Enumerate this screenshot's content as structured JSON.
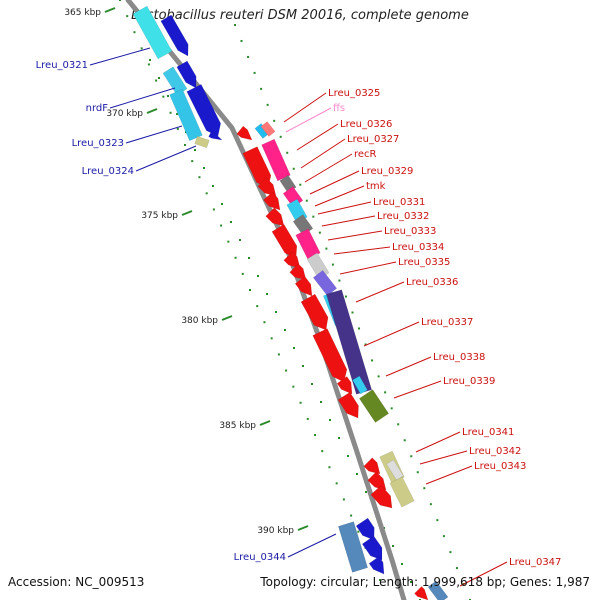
{
  "title": "Lactobacillus reuteri DSM 20016, complete genome",
  "accession": "Accession: NC_009513",
  "topology": "Topology: circular; Length: 1,999,618 bp; Genes: 1,987",
  "ticks": [
    "365 kbp",
    "370 kbp",
    "375 kbp",
    "380 kbp",
    "385 kbp",
    "390 kbp"
  ],
  "colors": {
    "minus_label": "#1a1aa6",
    "plus_label": "#cc1111",
    "rna_label": "#ff88cc",
    "backbone": "#888888",
    "tick": "#2a8a2a"
  },
  "labels": [
    {
      "text": "Lreu_0321",
      "strand": "minus"
    },
    {
      "text": "nrdF",
      "strand": "minus"
    },
    {
      "text": "Lreu_0323",
      "strand": "minus"
    },
    {
      "text": "Lreu_0324",
      "strand": "minus"
    },
    {
      "text": "Lreu_0325",
      "strand": "plus"
    },
    {
      "text": "ffs",
      "strand": "rna"
    },
    {
      "text": "Lreu_0326",
      "strand": "plus"
    },
    {
      "text": "Lreu_0327",
      "strand": "plus"
    },
    {
      "text": "recR",
      "strand": "plus"
    },
    {
      "text": "Lreu_0329",
      "strand": "plus"
    },
    {
      "text": "tmk",
      "strand": "plus"
    },
    {
      "text": "Lreu_0331",
      "strand": "plus"
    },
    {
      "text": "Lreu_0332",
      "strand": "plus"
    },
    {
      "text": "Lreu_0333",
      "strand": "plus"
    },
    {
      "text": "Lreu_0334",
      "strand": "plus"
    },
    {
      "text": "Lreu_0335",
      "strand": "plus"
    },
    {
      "text": "Lreu_0336",
      "strand": "plus"
    },
    {
      "text": "Lreu_0337",
      "strand": "plus"
    },
    {
      "text": "Lreu_0338",
      "strand": "plus"
    },
    {
      "text": "Lreu_0339",
      "strand": "plus"
    },
    {
      "text": "Lreu_0341",
      "strand": "plus"
    },
    {
      "text": "Lreu_0342",
      "strand": "plus"
    },
    {
      "text": "Lreu_0343",
      "strand": "plus"
    },
    {
      "text": "Lreu_0344",
      "strand": "minus"
    },
    {
      "text": "Lreu_0347",
      "strand": "plus"
    }
  ]
}
